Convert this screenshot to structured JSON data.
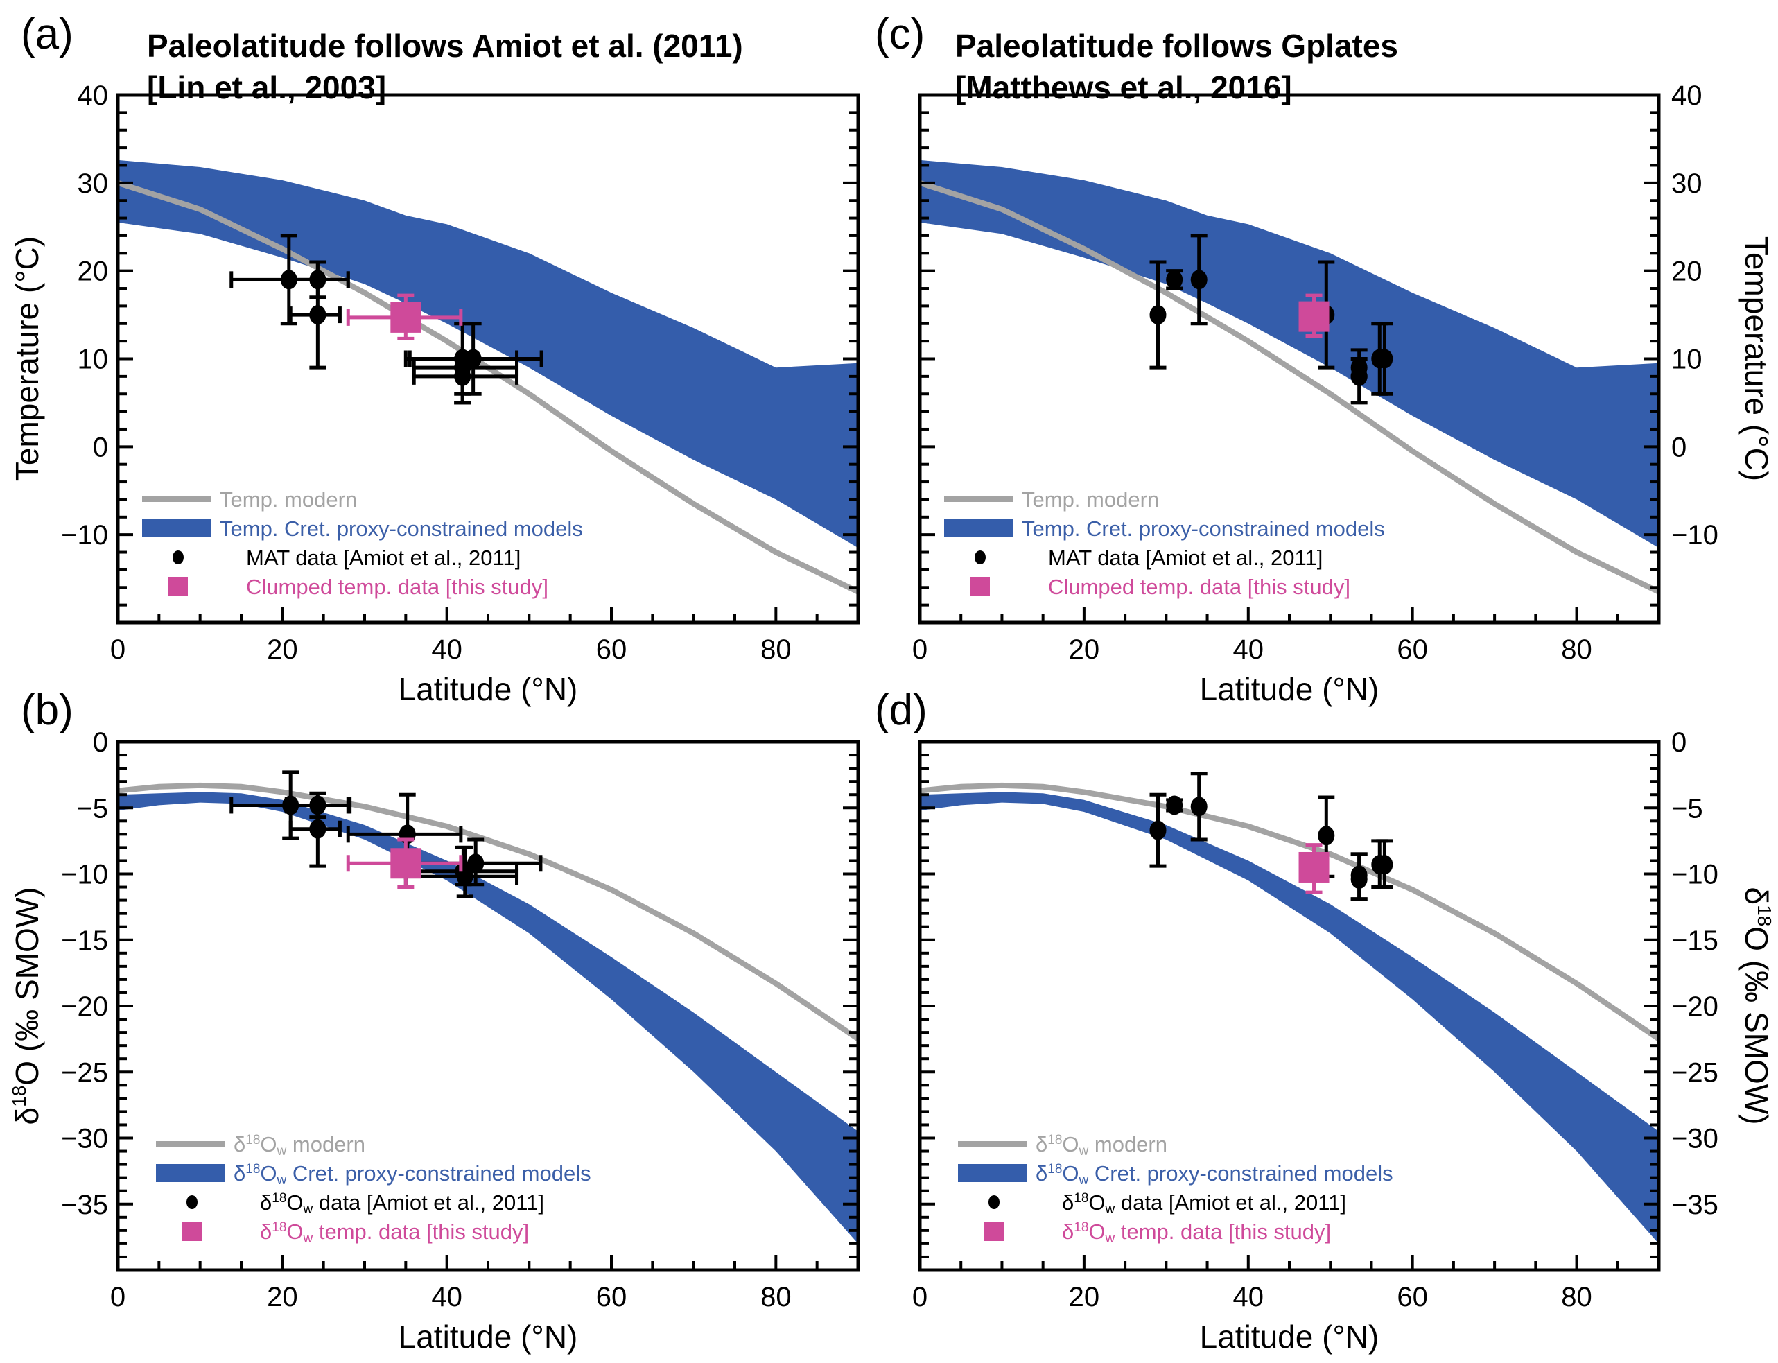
{
  "colors": {
    "band": "#345dab",
    "modern": "#a3a3a3",
    "data": "#000000",
    "this_study": "#cf4a9a"
  },
  "chart_data": [
    {
      "id": "a",
      "type": "scatter",
      "panel_letter": "(a)",
      "title_lines": [
        "Paleolatitude follows Amiot et al. (2011)",
        "[Lin et al., 2003]"
      ],
      "xlabel": "Latitude (°N)",
      "ylabel": "Temperature (°C)",
      "ylabel_side": "left",
      "xlim": [
        0,
        90
      ],
      "ylim": [
        -20,
        40
      ],
      "x_major_ticks": [
        0,
        20,
        40,
        60,
        80
      ],
      "x_tick_labels": [
        "0",
        "20",
        "40",
        "60",
        "80"
      ],
      "x_minor_step": 5,
      "y_major_ticks": [
        -10,
        0,
        10,
        20,
        30,
        40
      ],
      "y_tick_labels": [
        "−10",
        "0",
        "10",
        "20",
        "30",
        "40"
      ],
      "y_minor_step": 2,
      "grid": false,
      "legend_position": "bottom-left",
      "legend": [
        {
          "kind": "line",
          "text": "Temp. modern",
          "color_key": "modern"
        },
        {
          "kind": "band",
          "text": "Temp. Cret. proxy-constrained models",
          "color_key": "band"
        },
        {
          "kind": "dot",
          "text": "MAT data [Amiot et al., 2011]",
          "color_key": "data"
        },
        {
          "kind": "square",
          "text": "Clumped temp. data [this study]",
          "color_key": "this_study"
        }
      ],
      "modern_curve": {
        "x": [
          0,
          10,
          20,
          30,
          40,
          50,
          60,
          70,
          80,
          90
        ],
        "y": [
          30,
          27,
          22.5,
          17.5,
          12,
          6,
          -0.5,
          -6.5,
          -12,
          -16.5
        ]
      },
      "band": {
        "x": [
          0,
          10,
          20,
          30,
          35,
          40,
          50,
          60,
          70,
          80,
          90
        ],
        "upper": [
          32.6,
          31.8,
          30.3,
          28,
          26.3,
          25.3,
          22,
          17.5,
          13.5,
          9,
          9.5
        ],
        "lower": [
          25.5,
          24.2,
          21.5,
          18.5,
          16.3,
          14,
          9,
          3.5,
          -1.5,
          -6,
          -11.5
        ]
      },
      "points": [
        {
          "x": 20.8,
          "y": 19.0,
          "xerr": [
            13.8,
            28.0
          ],
          "yerr": [
            14.0,
            24.0
          ]
        },
        {
          "x": 24.3,
          "y": 19.0,
          "xerr": [
            20.5,
            28.0
          ],
          "yerr": [
            17.0,
            21.0
          ]
        },
        {
          "x": 24.3,
          "y": 15.0,
          "xerr": [
            21.0,
            27.0
          ],
          "yerr": [
            9.0,
            21.0
          ]
        },
        {
          "x": 41.9,
          "y": 10.0,
          "xerr": [
            35.5,
            48.5
          ],
          "yerr": [
            5.0,
            14.0
          ]
        },
        {
          "x": 43.2,
          "y": 10.0,
          "xerr": [
            35.0,
            51.5
          ],
          "yerr": [
            6.0,
            14.0
          ]
        },
        {
          "x": 41.9,
          "y": 9.0,
          "xerr": [
            36.0,
            48.5
          ],
          "yerr": [
            6.0,
            10.0
          ]
        },
        {
          "x": 41.9,
          "y": 8.0,
          "xerr": [
            36.0,
            48.5
          ],
          "yerr": [
            5.0,
            10.0
          ]
        }
      ],
      "this_study": [
        {
          "x": 35.0,
          "y": 14.7,
          "xerr": [
            28.0,
            41.7
          ],
          "yerr": [
            12.3,
            17.2
          ]
        }
      ]
    },
    {
      "id": "b",
      "type": "scatter",
      "panel_letter": "(b)",
      "title_lines": [],
      "xlabel": "Latitude (°N)",
      "ylabel": "δ18O (‰ SMOW)",
      "ylabel_side": "left",
      "xlim": [
        0,
        90
      ],
      "ylim": [
        -40,
        0
      ],
      "x_major_ticks": [
        0,
        20,
        40,
        60,
        80
      ],
      "x_tick_labels": [
        "0",
        "20",
        "40",
        "60",
        "80"
      ],
      "x_minor_step": 5,
      "y_major_ticks": [
        -35,
        -30,
        -25,
        -20,
        -15,
        -10,
        -5,
        0
      ],
      "y_tick_labels": [
        "−35",
        "−30",
        "−25",
        "−20",
        "−15",
        "−10",
        "−5",
        "0"
      ],
      "y_minor_step": 1,
      "grid": false,
      "legend_position": "bottom-left",
      "legend": [
        {
          "kind": "line",
          "text": "modern",
          "prefix": "δ",
          "sup": "18",
          "base": "O",
          "sub": "w",
          "color_key": "modern"
        },
        {
          "kind": "band",
          "text": "Cret. proxy-constrained models",
          "prefix": "δ",
          "sup": "18",
          "base": "O",
          "sub": "w",
          "color_key": "band"
        },
        {
          "kind": "dot",
          "text": "data [Amiot et al., 2011]",
          "prefix": "δ",
          "sup": "18",
          "base": "O",
          "sub": "w",
          "color_key": "data"
        },
        {
          "kind": "square",
          "text": "temp. data [this study]",
          "prefix": "δ",
          "sup": "18",
          "base": "O",
          "sub": "w",
          "color_key": "this_study"
        }
      ],
      "modern_curve": {
        "x": [
          0,
          5,
          10,
          15,
          20,
          30,
          40,
          50,
          60,
          70,
          80,
          90
        ],
        "y": [
          -3.7,
          -3.4,
          -3.3,
          -3.4,
          -3.8,
          -4.9,
          -6.4,
          -8.5,
          -11.2,
          -14.5,
          -18.3,
          -22.5
        ]
      },
      "band": {
        "x": [
          0,
          5,
          10,
          15,
          20,
          30,
          40,
          50,
          60,
          70,
          80,
          90
        ],
        "upper": [
          -4.0,
          -3.9,
          -3.8,
          -3.9,
          -4.4,
          -6.3,
          -9.0,
          -12.3,
          -16.3,
          -20.5,
          -25.0,
          -29.5
        ],
        "lower": [
          -5.2,
          -4.8,
          -4.6,
          -4.7,
          -5.3,
          -7.4,
          -10.5,
          -14.5,
          -19.5,
          -25.0,
          -31.0,
          -38.0
        ]
      },
      "points": [
        {
          "x": 21.0,
          "y": -4.8,
          "xerr": [
            13.8,
            28.0
          ],
          "yerr": [
            -7.3,
            -2.3
          ]
        },
        {
          "x": 24.3,
          "y": -4.8,
          "xerr": [
            20.5,
            28.2
          ],
          "yerr": [
            -5.7,
            -3.9
          ]
        },
        {
          "x": 24.3,
          "y": -6.6,
          "xerr": [
            21.0,
            27.0
          ],
          "yerr": [
            -9.4,
            -4.8
          ]
        },
        {
          "x": 35.2,
          "y": -7.0,
          "xerr": [
            28.0,
            41.7
          ],
          "yerr": [
            -9.5,
            -4.0
          ]
        },
        {
          "x": 42.2,
          "y": -10.2,
          "xerr": [
            35.0,
            48.5
          ],
          "yerr": [
            -11.7,
            -8.0
          ]
        },
        {
          "x": 42.0,
          "y": -9.8,
          "xerr": [
            35.0,
            48.5
          ],
          "yerr": [
            -10.8,
            -8.0
          ]
        },
        {
          "x": 43.5,
          "y": -9.2,
          "xerr": [
            35.0,
            51.4
          ],
          "yerr": [
            -10.8,
            -7.4
          ]
        }
      ],
      "this_study": [
        {
          "x": 35.0,
          "y": -9.2,
          "xerr": [
            28.0,
            41.7
          ],
          "yerr": [
            -11.0,
            -7.4
          ]
        }
      ]
    },
    {
      "id": "c",
      "type": "scatter",
      "panel_letter": "(c)",
      "title_lines": [
        "Paleolatitude follows Gplates",
        "[Matthews et al., 2016]"
      ],
      "xlabel": "Latitude (°N)",
      "ylabel": "Temperature (°C)",
      "ylabel_side": "right",
      "xlim": [
        0,
        90
      ],
      "ylim": [
        -20,
        40
      ],
      "x_major_ticks": [
        0,
        20,
        40,
        60,
        80
      ],
      "x_tick_labels": [
        "0",
        "20",
        "40",
        "60",
        "80"
      ],
      "x_minor_step": 5,
      "y_major_ticks": [
        -10,
        0,
        10,
        20,
        30,
        40
      ],
      "y_tick_labels": [
        "−10",
        "0",
        "10",
        "20",
        "30",
        "40"
      ],
      "y_minor_step": 2,
      "grid": false,
      "legend_position": "bottom-left",
      "legend": [
        {
          "kind": "line",
          "text": "Temp. modern",
          "color_key": "modern"
        },
        {
          "kind": "band",
          "text": "Temp. Cret. proxy-constrained models",
          "color_key": "band"
        },
        {
          "kind": "dot",
          "text": "MAT data [Amiot et al., 2011]",
          "color_key": "data"
        },
        {
          "kind": "square",
          "text": "Clumped temp. data [this study]",
          "color_key": "this_study"
        }
      ],
      "modern_curve": {
        "x": [
          0,
          10,
          20,
          30,
          40,
          50,
          60,
          70,
          80,
          90
        ],
        "y": [
          30,
          27,
          22.5,
          17.5,
          12,
          6,
          -0.5,
          -6.5,
          -12,
          -16.5
        ]
      },
      "band": {
        "x": [
          0,
          10,
          20,
          30,
          35,
          40,
          50,
          60,
          70,
          80,
          90
        ],
        "upper": [
          32.6,
          31.8,
          30.3,
          28,
          26.3,
          25.3,
          22,
          17.5,
          13.5,
          9,
          9.5
        ],
        "lower": [
          25.5,
          24.2,
          21.5,
          18.5,
          16.3,
          14,
          9,
          3.5,
          -1.5,
          -6,
          -11.5
        ]
      },
      "points": [
        {
          "x": 29.0,
          "y": 15.0,
          "xerr": null,
          "yerr": [
            9.0,
            21.0
          ]
        },
        {
          "x": 31.0,
          "y": 19.0,
          "xerr": null,
          "yerr": [
            18.0,
            20.0
          ]
        },
        {
          "x": 34.0,
          "y": 19.0,
          "xerr": null,
          "yerr": [
            14.0,
            24.0
          ]
        },
        {
          "x": 49.5,
          "y": 15.0,
          "xerr": null,
          "yerr": [
            9.0,
            21.0
          ]
        },
        {
          "x": 53.5,
          "y": 9.0,
          "xerr": null,
          "yerr": [
            8.0,
            11.0
          ]
        },
        {
          "x": 53.5,
          "y": 8.0,
          "xerr": null,
          "yerr": [
            5.0,
            10.0
          ]
        },
        {
          "x": 56.0,
          "y": 10.0,
          "xerr": null,
          "yerr": [
            6.0,
            14.0
          ]
        },
        {
          "x": 56.6,
          "y": 10.0,
          "xerr": null,
          "yerr": [
            6.0,
            14.0
          ]
        }
      ],
      "this_study": [
        {
          "x": 48.0,
          "y": 14.8,
          "xerr": null,
          "yerr": [
            12.6,
            17.2
          ]
        }
      ]
    },
    {
      "id": "d",
      "type": "scatter",
      "panel_letter": "(d)",
      "title_lines": [],
      "xlabel": "Latitude (°N)",
      "ylabel": "δ18O (‰ SMOW)",
      "ylabel_side": "right",
      "xlim": [
        0,
        90
      ],
      "ylim": [
        -40,
        0
      ],
      "x_major_ticks": [
        0,
        20,
        40,
        60,
        80
      ],
      "x_tick_labels": [
        "0",
        "20",
        "40",
        "60",
        "80"
      ],
      "x_minor_step": 5,
      "y_major_ticks": [
        -35,
        -30,
        -25,
        -20,
        -15,
        -10,
        -5,
        0
      ],
      "y_tick_labels": [
        "−35",
        "−30",
        "−25",
        "−20",
        "−15",
        "−10",
        "−5",
        "0"
      ],
      "y_minor_step": 1,
      "grid": false,
      "legend_position": "bottom-left",
      "legend": [
        {
          "kind": "line",
          "text": "modern",
          "prefix": "δ",
          "sup": "18",
          "base": "O",
          "sub": "w",
          "color_key": "modern"
        },
        {
          "kind": "band",
          "text": "Cret. proxy-constrained models",
          "prefix": "δ",
          "sup": "18",
          "base": "O",
          "sub": "w",
          "color_key": "band"
        },
        {
          "kind": "dot",
          "text": "data [Amiot et al., 2011]",
          "prefix": "δ",
          "sup": "18",
          "base": "O",
          "sub": "w",
          "color_key": "data"
        },
        {
          "kind": "square",
          "text": "temp. data [this study]",
          "prefix": "δ",
          "sup": "18",
          "base": "O",
          "sub": "w",
          "color_key": "this_study"
        }
      ],
      "modern_curve": {
        "x": [
          0,
          5,
          10,
          15,
          20,
          30,
          40,
          50,
          60,
          70,
          80,
          90
        ],
        "y": [
          -3.7,
          -3.4,
          -3.3,
          -3.4,
          -3.8,
          -4.9,
          -6.4,
          -8.5,
          -11.2,
          -14.5,
          -18.3,
          -22.5
        ]
      },
      "band": {
        "x": [
          0,
          5,
          10,
          15,
          20,
          30,
          40,
          50,
          60,
          70,
          80,
          90
        ],
        "upper": [
          -4.0,
          -3.9,
          -3.8,
          -3.9,
          -4.4,
          -6.3,
          -9.0,
          -12.3,
          -16.3,
          -20.5,
          -25.0,
          -29.5
        ],
        "lower": [
          -5.2,
          -4.8,
          -4.6,
          -4.7,
          -5.3,
          -7.4,
          -10.5,
          -14.5,
          -19.5,
          -25.0,
          -31.0,
          -38.0
        ]
      },
      "points": [
        {
          "x": 29.0,
          "y": -6.7,
          "xerr": null,
          "yerr": [
            -9.4,
            -4.0
          ]
        },
        {
          "x": 31.0,
          "y": -4.8,
          "xerr": null,
          "yerr": [
            -5.2,
            -4.4
          ]
        },
        {
          "x": 34.0,
          "y": -4.9,
          "xerr": null,
          "yerr": [
            -7.4,
            -2.4
          ]
        },
        {
          "x": 49.5,
          "y": -7.1,
          "xerr": null,
          "yerr": [
            -10.2,
            -4.2
          ]
        },
        {
          "x": 53.5,
          "y": -10.1,
          "xerr": null,
          "yerr": [
            -11.9,
            -8.5
          ]
        },
        {
          "x": 53.5,
          "y": -10.4,
          "xerr": null,
          "yerr": [
            -11.9,
            -8.5
          ]
        },
        {
          "x": 56.0,
          "y": -9.3,
          "xerr": null,
          "yerr": [
            -11.0,
            -7.5
          ]
        },
        {
          "x": 56.6,
          "y": -9.3,
          "xerr": null,
          "yerr": [
            -11.0,
            -7.5
          ]
        }
      ],
      "this_study": [
        {
          "x": 48.0,
          "y": -9.5,
          "xerr": null,
          "yerr": [
            -11.4,
            -7.8
          ]
        }
      ]
    }
  ]
}
